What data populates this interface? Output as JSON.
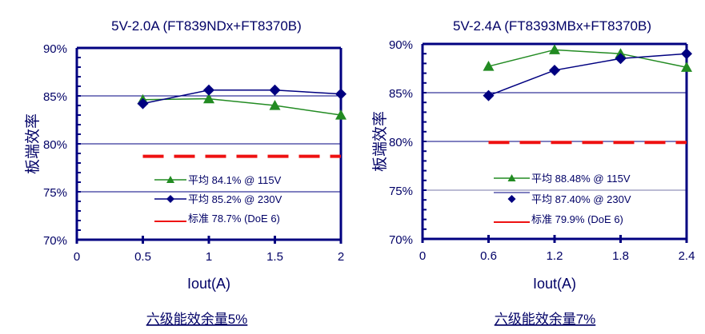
{
  "chart_data": [
    {
      "type": "line",
      "title": "5V-2.0A (FT839NDx+FT8370B)",
      "xlabel": "Iout(A)",
      "ylabel": "板端效率",
      "xlim": [
        0,
        2
      ],
      "ylim": [
        70,
        90
      ],
      "x_ticks": [
        "0",
        "0.5",
        "1",
        "1.5",
        "2"
      ],
      "y_ticks": [
        "70%",
        "75%",
        "80%",
        "85%",
        "90%"
      ],
      "grid": "horizontal",
      "legend_position": "bottom-right-inside",
      "footnote": "六级能效余量5%",
      "series": [
        {
          "name": "平均 84.1% @ 115V",
          "color": "#228B22",
          "marker": "triangle",
          "x": [
            0.5,
            1,
            1.5,
            2
          ],
          "y": [
            84.6,
            84.7,
            84.0,
            83.0
          ]
        },
        {
          "name": "平均 85.2% @ 230V",
          "color": "#000080",
          "marker": "diamond",
          "x": [
            0.5,
            1,
            1.5,
            2
          ],
          "y": [
            84.2,
            85.6,
            85.6,
            85.2
          ]
        },
        {
          "name": "标准 78.7% (DoE 6)",
          "color": "#EE1111",
          "marker": "none",
          "dashed": true,
          "x": [
            0.5,
            2
          ],
          "y": [
            78.7,
            78.7
          ]
        }
      ]
    },
    {
      "type": "line",
      "title": "5V-2.4A (FT8393MBx+FT8370B)",
      "xlabel": "Iout(A)",
      "ylabel": "板端效率",
      "xlim": [
        0,
        2.4
      ],
      "ylim": [
        70,
        90
      ],
      "x_ticks": [
        "0",
        "0.6",
        "1.2",
        "1.8",
        "2.4"
      ],
      "y_ticks": [
        "70%",
        "75%",
        "80%",
        "85%",
        "90%"
      ],
      "grid": "horizontal",
      "legend_position": "bottom-right-inside",
      "footnote": "六级能效余量7%",
      "series": [
        {
          "name": "平均 88.48% @ 115V",
          "color": "#228B22",
          "marker": "triangle",
          "x": [
            0.6,
            1.2,
            1.8,
            2.4
          ],
          "y": [
            87.7,
            89.4,
            89.0,
            87.6
          ]
        },
        {
          "name": "平均 87.40% @ 230V",
          "color": "#000080",
          "marker": "diamond",
          "x": [
            0.6,
            1.2,
            1.8,
            2.4
          ],
          "y": [
            84.7,
            87.3,
            88.5,
            89.0
          ]
        },
        {
          "name": "标准 79.9% (DoE 6)",
          "color": "#EE1111",
          "marker": "none",
          "dashed": true,
          "x": [
            0.6,
            2.4
          ],
          "y": [
            79.9,
            79.9
          ]
        }
      ]
    }
  ]
}
